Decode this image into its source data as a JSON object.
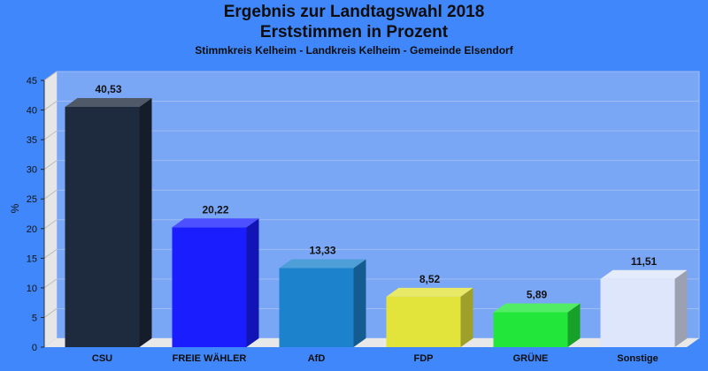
{
  "chart_data": {
    "type": "bar",
    "title": "Ergebnis zur Landtagswahl 2018",
    "title_line2": "Erststimmen in Prozent",
    "subtitle": "Stimmkreis Kelheim - Landkreis Kelheim - Gemeinde Elsendorf",
    "ylabel": "%",
    "ylim": [
      0,
      45
    ],
    "yticks": [
      0,
      5,
      10,
      15,
      20,
      25,
      30,
      35,
      40,
      45
    ],
    "grid": true,
    "categories": [
      "CSU",
      "FREIE WÄHLER",
      "AfD",
      "FDP",
      "GRÜNE",
      "Sonstige"
    ],
    "values": [
      40.53,
      20.22,
      13.33,
      8.52,
      5.89,
      11.51
    ],
    "value_labels": [
      "40,53",
      "20,22",
      "13,33",
      "8,52",
      "5,89",
      "11,51"
    ],
    "colors": [
      "#1e2a3e",
      "#1a1eff",
      "#1c82cc",
      "#e2e43c",
      "#22e63a",
      "#dde6fb"
    ]
  }
}
